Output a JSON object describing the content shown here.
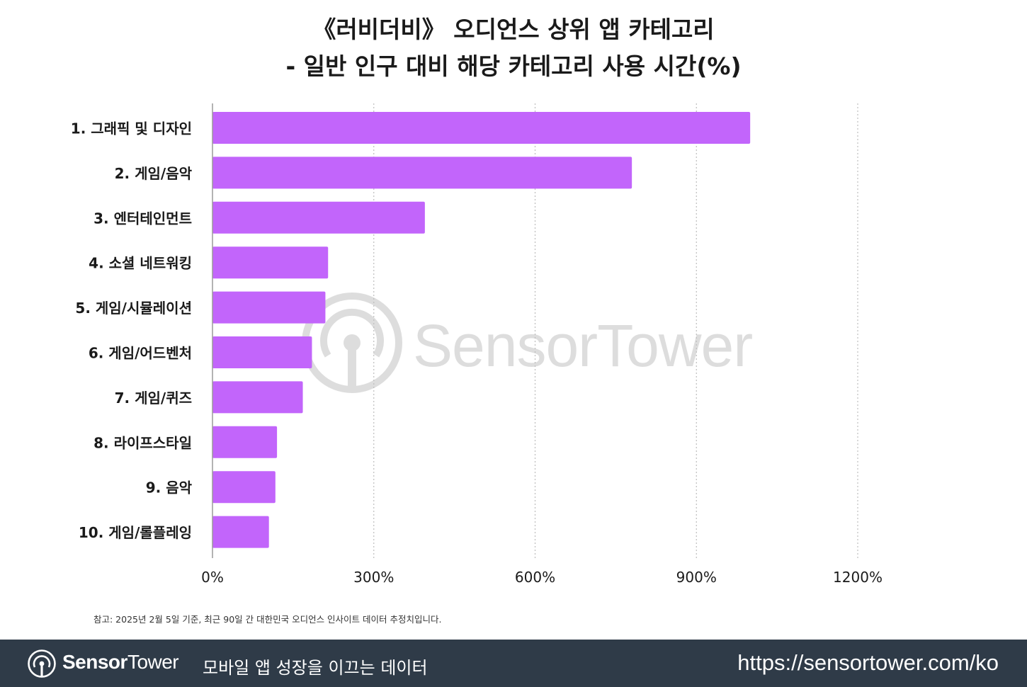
{
  "title_line1": "《러비더비》 오디언스 상위 앱 카테고리",
  "title_line2": "- 일반 인구 대비 해당 카테고리 사용 시간(%)",
  "note": "참고: 2025년 2월 5일 기준, 최근 90일 간 대한민국 오디언스 인사이트 데이터 추정치입니다.",
  "watermark": {
    "brand": "SensorTower"
  },
  "footer": {
    "brand_bold": "Sensor",
    "brand_light": "Tower",
    "tagline": "모바일 앱 성장을 이끄는 데이터",
    "url": "https://sensortower.com/ko"
  },
  "colors": {
    "bar": "#c265fb",
    "grid": "#bdbdbd",
    "footer_bg": "#2f3b48"
  },
  "chart_data": {
    "type": "bar",
    "orientation": "horizontal",
    "categories": [
      "1. 그래픽 및 디자인",
      "2. 게임/음악",
      "3. 엔터테인먼트",
      "4. 소셜 네트워킹",
      "5. 게임/시뮬레이션",
      "6. 게임/어드벤처",
      "7. 게임/퀴즈",
      "8. 라이프스타일",
      "9. 음악",
      "10. 게임/롤플레잉"
    ],
    "values": [
      1000,
      780,
      395,
      215,
      210,
      185,
      168,
      120,
      117,
      105
    ],
    "xlim": [
      0,
      1200
    ],
    "xticks": [
      0,
      300,
      600,
      900,
      1200
    ],
    "xtick_labels": [
      "0%",
      "300%",
      "600%",
      "900%",
      "1200%"
    ],
    "grid": "vertical-dotted",
    "legend": "none"
  }
}
